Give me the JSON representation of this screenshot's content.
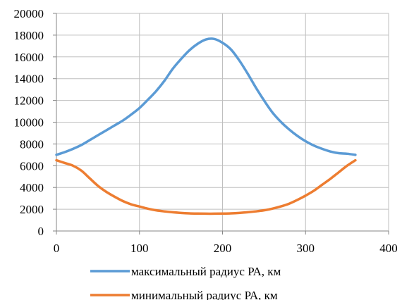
{
  "chart_data": {
    "type": "line",
    "title": "",
    "xlabel": "",
    "ylabel": "",
    "xlim": [
      0,
      400
    ],
    "ylim": [
      0,
      20000
    ],
    "x_ticks": [
      0,
      100,
      200,
      300,
      400
    ],
    "y_ticks": [
      0,
      2000,
      4000,
      6000,
      8000,
      10000,
      12000,
      14000,
      16000,
      18000,
      20000
    ],
    "x_tick_labels": [
      "0",
      "100",
      "200",
      "300",
      "400"
    ],
    "y_tick_labels": [
      "0",
      "2000",
      "4000",
      "6000",
      "8000",
      "10000",
      "12000",
      "14000",
      "16000",
      "18000",
      "20000"
    ],
    "grid": true,
    "legend_position": "bottom",
    "series": [
      {
        "name": "максимальный радиус РА, км",
        "color": "#5b9bd5",
        "points": [
          [
            0,
            7000
          ],
          [
            10,
            7250
          ],
          [
            20,
            7550
          ],
          [
            30,
            7900
          ],
          [
            40,
            8350
          ],
          [
            50,
            8800
          ],
          [
            60,
            9250
          ],
          [
            70,
            9700
          ],
          [
            80,
            10150
          ],
          [
            90,
            10700
          ],
          [
            100,
            11300
          ],
          [
            110,
            12050
          ],
          [
            120,
            12850
          ],
          [
            130,
            13800
          ],
          [
            140,
            14900
          ],
          [
            150,
            15800
          ],
          [
            160,
            16600
          ],
          [
            170,
            17200
          ],
          [
            180,
            17600
          ],
          [
            190,
            17650
          ],
          [
            200,
            17300
          ],
          [
            210,
            16700
          ],
          [
            220,
            15700
          ],
          [
            230,
            14500
          ],
          [
            240,
            13200
          ],
          [
            250,
            12000
          ],
          [
            260,
            10900
          ],
          [
            270,
            10050
          ],
          [
            280,
            9350
          ],
          [
            290,
            8750
          ],
          [
            300,
            8250
          ],
          [
            310,
            7850
          ],
          [
            320,
            7550
          ],
          [
            330,
            7300
          ],
          [
            340,
            7150
          ],
          [
            350,
            7100
          ],
          [
            360,
            7000
          ]
        ]
      },
      {
        "name": "минимальный радиус РА, км",
        "color": "#ed7d31",
        "points": [
          [
            0,
            6500
          ],
          [
            10,
            6250
          ],
          [
            20,
            6000
          ],
          [
            30,
            5550
          ],
          [
            40,
            4850
          ],
          [
            50,
            4150
          ],
          [
            60,
            3600
          ],
          [
            70,
            3150
          ],
          [
            80,
            2750
          ],
          [
            90,
            2450
          ],
          [
            100,
            2250
          ],
          [
            110,
            2050
          ],
          [
            120,
            1900
          ],
          [
            130,
            1800
          ],
          [
            140,
            1720
          ],
          [
            150,
            1660
          ],
          [
            160,
            1620
          ],
          [
            170,
            1600
          ],
          [
            180,
            1590
          ],
          [
            190,
            1590
          ],
          [
            200,
            1600
          ],
          [
            210,
            1620
          ],
          [
            220,
            1660
          ],
          [
            230,
            1720
          ],
          [
            240,
            1800
          ],
          [
            250,
            1900
          ],
          [
            260,
            2050
          ],
          [
            270,
            2250
          ],
          [
            280,
            2500
          ],
          [
            290,
            2850
          ],
          [
            300,
            3250
          ],
          [
            310,
            3700
          ],
          [
            320,
            4250
          ],
          [
            330,
            4800
          ],
          [
            340,
            5400
          ],
          [
            350,
            6000
          ],
          [
            360,
            6500
          ]
        ]
      }
    ]
  }
}
